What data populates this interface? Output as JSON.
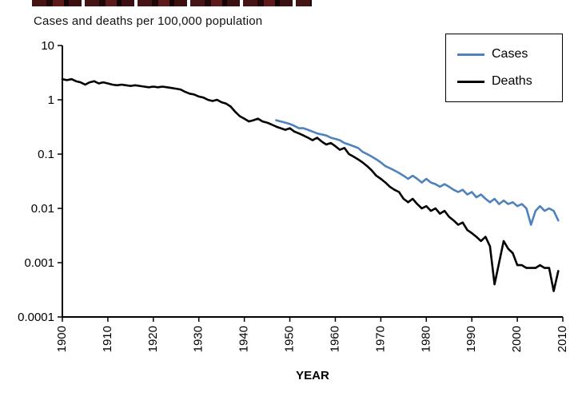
{
  "figure": {
    "title": "Cases and deaths per 100,000 population",
    "x_axis_title": "YEAR"
  },
  "legend": {
    "items": [
      {
        "label": "Cases",
        "color": "#4f81bd"
      },
      {
        "label": "Deaths",
        "color": "#000000"
      }
    ]
  },
  "chart_data": {
    "type": "line",
    "title": "Cases and deaths per 100,000 population",
    "xlabel": "YEAR",
    "ylabel": "Cases and deaths per 100,000 population",
    "y_scale": "log",
    "grid": false,
    "legend_position": "top-right",
    "xlim": [
      1900,
      2010
    ],
    "ylim": [
      0.0001,
      10
    ],
    "x_tick_labels": [
      "1900",
      "1910",
      "1920",
      "1930",
      "1940",
      "1950",
      "1960",
      "1970",
      "1980",
      "1990",
      "2000",
      "2010"
    ],
    "y_tick_values": [
      10,
      1,
      0.1,
      0.01,
      0.001,
      0.0001
    ],
    "y_tick_labels": [
      "10",
      "1",
      "0.1",
      "0.01",
      "0.001",
      "0.0001"
    ],
    "series": [
      {
        "name": "Cases",
        "color": "#4f81bd",
        "x_start": 1947,
        "x_step": 1,
        "values": [
          0.42,
          0.4,
          0.38,
          0.36,
          0.33,
          0.3,
          0.3,
          0.28,
          0.26,
          0.24,
          0.23,
          0.22,
          0.2,
          0.19,
          0.18,
          0.16,
          0.15,
          0.14,
          0.13,
          0.11,
          0.1,
          0.09,
          0.08,
          0.07,
          0.06,
          0.055,
          0.05,
          0.045,
          0.04,
          0.035,
          0.04,
          0.035,
          0.03,
          0.035,
          0.03,
          0.028,
          0.025,
          0.028,
          0.025,
          0.022,
          0.02,
          0.022,
          0.018,
          0.02,
          0.016,
          0.018,
          0.015,
          0.013,
          0.015,
          0.012,
          0.014,
          0.012,
          0.013,
          0.011,
          0.012,
          0.01,
          0.005,
          0.009,
          0.011,
          0.009,
          0.01,
          0.009,
          0.006
        ]
      },
      {
        "name": "Deaths",
        "color": "#000000",
        "x_start": 1900,
        "x_step": 1,
        "values": [
          2.4,
          2.3,
          2.4,
          2.2,
          2.1,
          1.9,
          2.1,
          2.2,
          2.0,
          2.1,
          2.0,
          1.9,
          1.85,
          1.9,
          1.85,
          1.8,
          1.85,
          1.8,
          1.75,
          1.7,
          1.75,
          1.7,
          1.75,
          1.7,
          1.65,
          1.6,
          1.55,
          1.4,
          1.3,
          1.25,
          1.15,
          1.1,
          1.0,
          0.95,
          1.0,
          0.9,
          0.85,
          0.75,
          0.6,
          0.5,
          0.45,
          0.4,
          0.42,
          0.45,
          0.4,
          0.38,
          0.35,
          0.32,
          0.3,
          0.28,
          0.3,
          0.26,
          0.24,
          0.22,
          0.2,
          0.18,
          0.2,
          0.17,
          0.15,
          0.16,
          0.14,
          0.12,
          0.13,
          0.1,
          0.09,
          0.08,
          0.07,
          0.06,
          0.05,
          0.04,
          0.035,
          0.03,
          0.025,
          0.022,
          0.02,
          0.015,
          0.013,
          0.015,
          0.012,
          0.01,
          0.011,
          0.009,
          0.01,
          0.008,
          0.009,
          0.007,
          0.006,
          0.005,
          0.0055,
          0.004,
          0.0035,
          0.003,
          0.0025,
          0.003,
          0.002,
          0.0004,
          0.001,
          0.0025,
          0.0018,
          0.0015,
          0.0009,
          0.0009,
          0.0008,
          0.0008,
          0.0008,
          0.0009,
          0.0008,
          0.0008,
          0.0003,
          0.0007
        ]
      }
    ]
  }
}
